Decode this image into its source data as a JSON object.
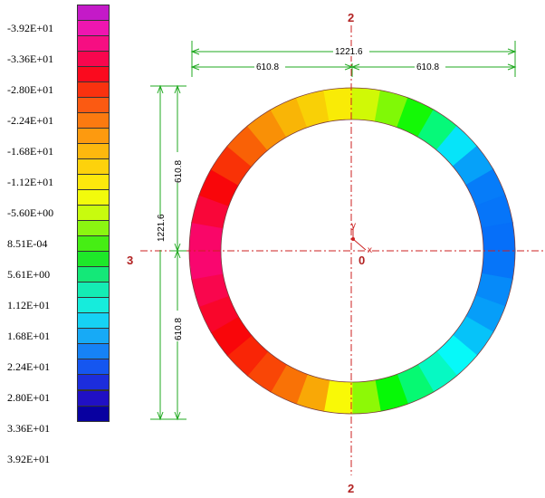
{
  "legend": {
    "colors": [
      "#c41ac8",
      "#ee16b0",
      "#f60e82",
      "#f8064e",
      "#fa0a1e",
      "#f9320f",
      "#fb5a12",
      "#fb7a10",
      "#fd9a0f",
      "#fdb80e",
      "#fdd20c",
      "#fde80c",
      "#f2fb0c",
      "#c8fb0e",
      "#8bf611",
      "#46ee14",
      "#1ee829",
      "#14e878",
      "#14ecb4",
      "#16ecdc",
      "#16d2f4",
      "#17aaf6",
      "#1682f6",
      "#1556f0",
      "#1c2ddc",
      "#2010c4",
      "#0800a0"
    ],
    "labels": [
      "-3.92E+01",
      "-3.36E+01",
      "-2.80E+01",
      "-2.24E+01",
      "-1.68E+01",
      "-1.12E+01",
      "-5.60E+00",
      "8.51E-04",
      "5.61E+00",
      "1.12E+01",
      "1.68E+01",
      "2.24E+01",
      "2.80E+01",
      "3.36E+01",
      "3.92E+01"
    ]
  },
  "dimensions": {
    "horizontal_total": "1221.6",
    "horizontal_left": "610.8",
    "horizontal_right": "610.8",
    "vertical_total": "1221.6",
    "vertical_top": "610.8",
    "vertical_bottom": "610.8"
  },
  "axes": {
    "top_label": "2",
    "bottom_label": "2",
    "left_label": "3",
    "origin_label": "0",
    "local_y": "y",
    "local_x": "x"
  },
  "ring": {
    "min_value": -39.2,
    "max_value": 39.2
  }
}
